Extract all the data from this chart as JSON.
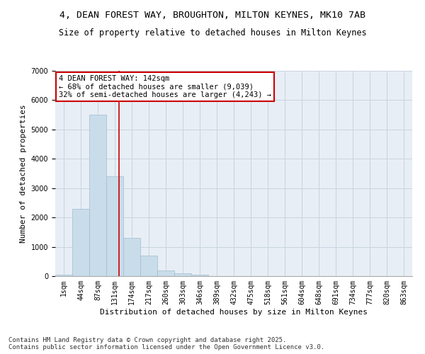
{
  "title_line1": "4, DEAN FOREST WAY, BROUGHTON, MILTON KEYNES, MK10 7AB",
  "title_line2": "Size of property relative to detached houses in Milton Keynes",
  "xlabel": "Distribution of detached houses by size in Milton Keynes",
  "ylabel": "Number of detached properties",
  "categories": [
    "1sqm",
    "44sqm",
    "87sqm",
    "131sqm",
    "174sqm",
    "217sqm",
    "260sqm",
    "303sqm",
    "346sqm",
    "389sqm",
    "432sqm",
    "475sqm",
    "518sqm",
    "561sqm",
    "604sqm",
    "648sqm",
    "691sqm",
    "734sqm",
    "777sqm",
    "820sqm",
    "863sqm"
  ],
  "values": [
    50,
    2300,
    5500,
    3400,
    1300,
    700,
    200,
    100,
    50,
    10,
    5,
    2,
    1,
    1,
    0,
    0,
    0,
    0,
    0,
    0,
    0
  ],
  "bar_color": "#c9dcea",
  "bar_edge_color": "#a0bdd0",
  "annotation_title": "4 DEAN FOREST WAY: 142sqm",
  "annotation_line1": "← 68% of detached houses are smaller (9,039)",
  "annotation_line2": "32% of semi-detached houses are larger (4,243) →",
  "annotation_box_facecolor": "#ffffff",
  "annotation_box_edgecolor": "#cc0000",
  "red_line_color": "#cc0000",
  "grid_color": "#c8d4e0",
  "background_color": "#e8eef5",
  "ylim": [
    0,
    7000
  ],
  "yticks": [
    0,
    1000,
    2000,
    3000,
    4000,
    5000,
    6000,
    7000
  ],
  "footer_line1": "Contains HM Land Registry data © Crown copyright and database right 2025.",
  "footer_line2": "Contains public sector information licensed under the Open Government Licence v3.0.",
  "title_fontsize": 9.5,
  "subtitle_fontsize": 8.5,
  "axis_label_fontsize": 8,
  "tick_fontsize": 7,
  "footer_fontsize": 6.5,
  "annotation_fontsize": 7.5
}
